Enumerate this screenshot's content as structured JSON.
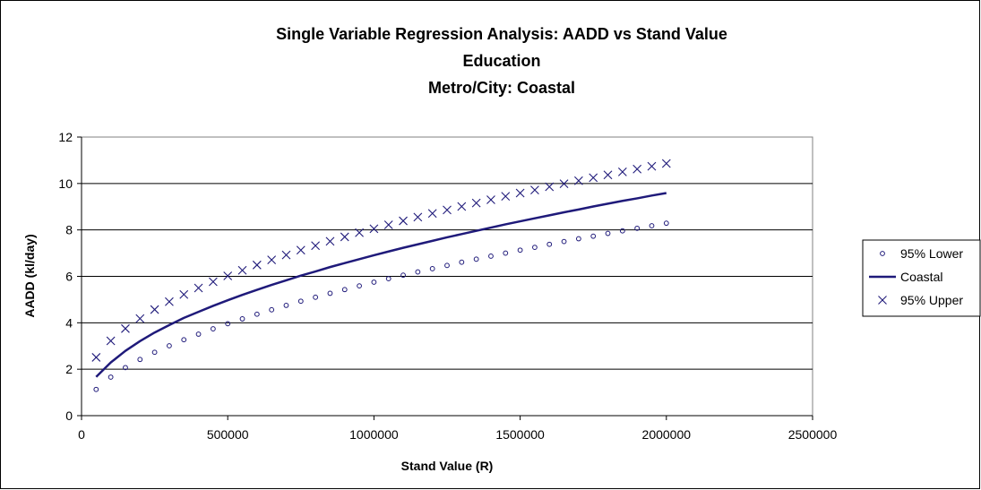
{
  "chart_data": {
    "type": "scatter",
    "title": [
      "Single Variable Regression Analysis: AADD vs Stand Value",
      "Education",
      "Metro/City: Coastal"
    ],
    "xlabel": "Stand Value (R)",
    "ylabel": "AADD (kl/day)",
    "xlim": [
      0,
      2500000
    ],
    "ylim": [
      0,
      12
    ],
    "xticks": [
      0,
      500000,
      1000000,
      1500000,
      2000000,
      2500000
    ],
    "yticks": [
      0,
      2,
      4,
      6,
      8,
      10,
      12
    ],
    "grid": "horizontal",
    "legend_position": "right",
    "colors": {
      "series": "#1f1a7a",
      "grid": "#000000",
      "plot_bg": "#ffffff"
    },
    "x": [
      50000,
      100000,
      150000,
      200000,
      250000,
      300000,
      350000,
      400000,
      450000,
      500000,
      550000,
      600000,
      650000,
      700000,
      750000,
      800000,
      850000,
      900000,
      950000,
      1000000,
      1050000,
      1100000,
      1150000,
      1200000,
      1250000,
      1300000,
      1350000,
      1400000,
      1450000,
      1500000,
      1550000,
      1600000,
      1650000,
      1700000,
      1750000,
      1800000,
      1850000,
      1900000,
      1950000,
      2000000
    ],
    "series": [
      {
        "name": "95% Lower",
        "marker": "circle",
        "values": [
          1.13,
          1.66,
          2.07,
          2.42,
          2.73,
          3.01,
          3.27,
          3.51,
          3.74,
          3.96,
          4.17,
          4.37,
          4.56,
          4.75,
          4.93,
          5.1,
          5.27,
          5.43,
          5.59,
          5.75,
          5.9,
          6.05,
          6.19,
          6.33,
          6.47,
          6.61,
          6.74,
          6.87,
          7.0,
          7.13,
          7.25,
          7.38,
          7.5,
          7.62,
          7.73,
          7.85,
          7.96,
          8.07,
          8.18,
          8.29
        ]
      },
      {
        "name": "Coastal",
        "marker": "line",
        "values": [
          1.67,
          2.29,
          2.79,
          3.21,
          3.58,
          3.9,
          4.21,
          4.47,
          4.73,
          4.97,
          5.2,
          5.42,
          5.63,
          5.83,
          6.03,
          6.21,
          6.4,
          6.57,
          6.74,
          6.91,
          7.07,
          7.23,
          7.38,
          7.53,
          7.68,
          7.82,
          7.96,
          8.1,
          8.24,
          8.37,
          8.5,
          8.63,
          8.76,
          8.88,
          9.01,
          9.13,
          9.25,
          9.36,
          9.48,
          9.59
        ]
      },
      {
        "name": "95% Upper",
        "marker": "x",
        "values": [
          2.51,
          3.22,
          3.75,
          4.18,
          4.57,
          4.91,
          5.22,
          5.5,
          5.77,
          6.02,
          6.26,
          6.49,
          6.71,
          6.92,
          7.13,
          7.32,
          7.51,
          7.7,
          7.88,
          8.05,
          8.22,
          8.39,
          8.55,
          8.71,
          8.86,
          9.01,
          9.16,
          9.3,
          9.45,
          9.59,
          9.72,
          9.86,
          9.99,
          10.12,
          10.25,
          10.37,
          10.5,
          10.62,
          10.74,
          10.86
        ]
      }
    ]
  }
}
